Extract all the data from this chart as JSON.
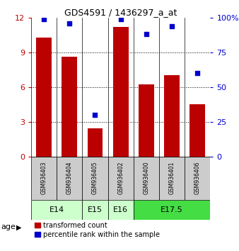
{
  "title": "GDS4591 / 1436297_a_at",
  "samples": [
    "GSM936403",
    "GSM936404",
    "GSM936405",
    "GSM936402",
    "GSM936400",
    "GSM936401",
    "GSM936406"
  ],
  "bar_values": [
    10.3,
    8.6,
    2.4,
    11.2,
    6.2,
    7.0,
    4.5
  ],
  "percentile_values": [
    99,
    96,
    30,
    99,
    88,
    94,
    60
  ],
  "bar_color": "#bb0000",
  "dot_color": "#0000cc",
  "ylim_left": [
    0,
    12
  ],
  "ylim_right": [
    0,
    100
  ],
  "yticks_left": [
    0,
    3,
    6,
    9,
    12
  ],
  "yticks_right": [
    0,
    25,
    50,
    75,
    100
  ],
  "age_groups": [
    {
      "label": "E14",
      "span": [
        0,
        2
      ],
      "color": "#ccffcc"
    },
    {
      "label": "E15",
      "span": [
        2,
        3
      ],
      "color": "#ccffcc"
    },
    {
      "label": "E16",
      "span": [
        3,
        4
      ],
      "color": "#ccffcc"
    },
    {
      "label": "E17.5",
      "span": [
        4,
        7
      ],
      "color": "#44dd44"
    }
  ],
  "age_label": "age",
  "legend_items": [
    {
      "label": "transformed count",
      "color": "#bb0000"
    },
    {
      "label": "percentile rank within the sample",
      "color": "#0000cc"
    }
  ],
  "bg_color": "#ffffff",
  "sample_box_color": "#cccccc",
  "left_tick_color": "#bb0000",
  "right_tick_color": "#0000cc"
}
